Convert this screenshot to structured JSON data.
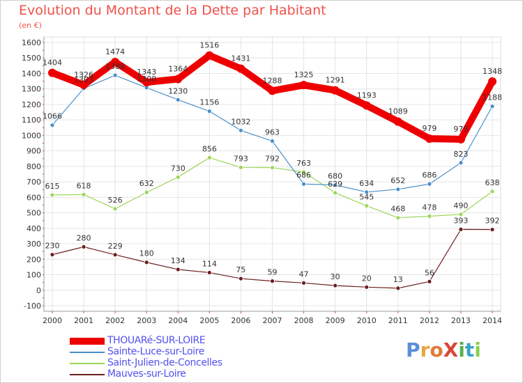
{
  "title": "Evolution du Montant de la Dette par Habitant",
  "unit": "(en €)",
  "logo": {
    "text": "ProXiti",
    "letter_colors": [
      "#5b8fd6",
      "#e9a53c",
      "#e07b39",
      "#d9473a",
      "#5aae4a",
      "#3aa3c9",
      "#8ad04e"
    ]
  },
  "chart_data": {
    "type": "line",
    "title": "Evolution du Montant de la Dette par Habitant",
    "ylabel": "(en €)",
    "xlabel": "",
    "ylim": [
      -100,
      1600
    ],
    "yticks": [
      -100,
      0,
      100,
      200,
      300,
      400,
      500,
      600,
      700,
      800,
      900,
      1000,
      1100,
      1200,
      1300,
      1400,
      1500,
      1600
    ],
    "x": [
      "2000",
      "2001",
      "2002",
      "2003",
      "2004",
      "2005",
      "2006",
      "2007",
      "2008",
      "2009",
      "2010",
      "2011",
      "2012",
      "2013",
      "2014"
    ],
    "grid": true,
    "legend_position": "bottom-left",
    "series": [
      {
        "name": "THOUARé-SUR-LOIRE",
        "color": "#ee0000",
        "values": [
          1404,
          1326,
          1474,
          1343,
          1364,
          1516,
          1431,
          1288,
          1325,
          1291,
          1193,
          1089,
          979,
          975,
          1348
        ]
      },
      {
        "name": "Sainte-Luce-sur-Loire",
        "color": "#4a8ec9",
        "values": [
          1066,
          1303,
          1388,
          1308,
          1230,
          1156,
          1032,
          963,
          686,
          680,
          634,
          652,
          686,
          823,
          1188
        ]
      },
      {
        "name": "Saint-Julien-de-Concelles",
        "color": "#9bd657",
        "values": [
          615,
          618,
          526,
          632,
          730,
          856,
          793,
          792,
          763,
          629,
          545,
          468,
          478,
          490,
          638
        ]
      },
      {
        "name": "Mauves-sur-Loire",
        "color": "#6b1e1e",
        "values": [
          230,
          280,
          229,
          180,
          134,
          114,
          75,
          59,
          47,
          30,
          20,
          13,
          56,
          393,
          392
        ]
      }
    ]
  }
}
